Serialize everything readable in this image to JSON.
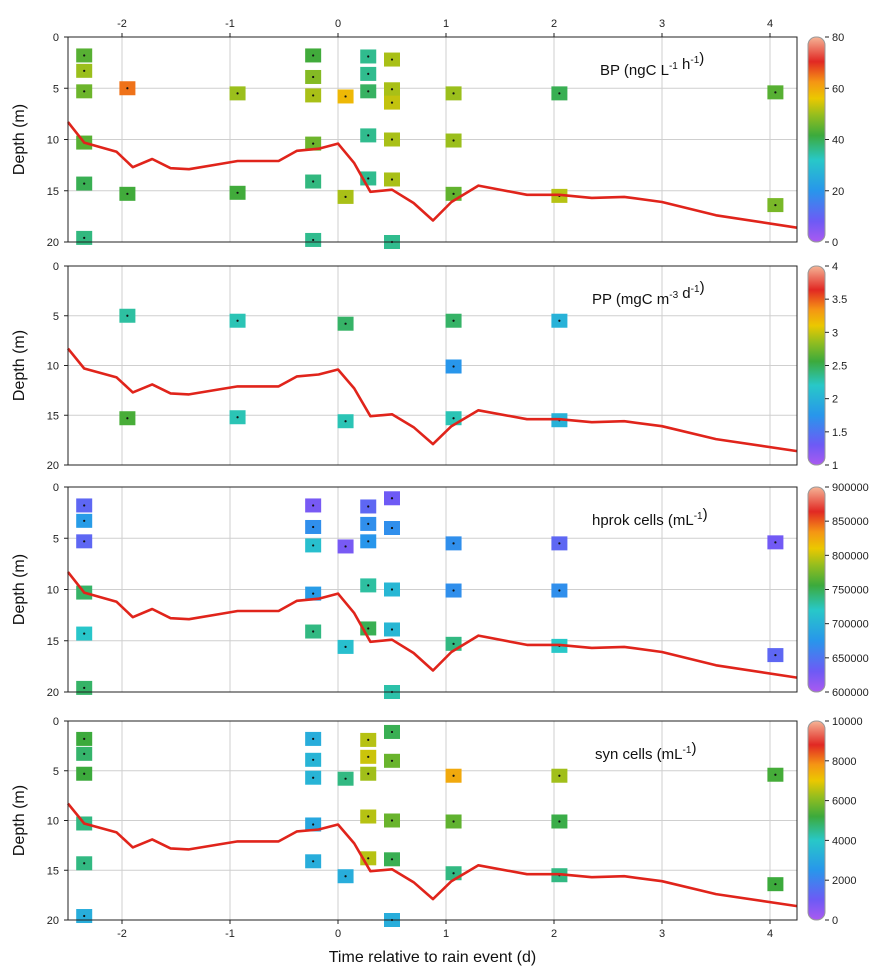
{
  "figure": {
    "xlabel": "Time relative to rain event (d)",
    "ylabel": "Depth (m)"
  },
  "chart_data": [
    {
      "type": "scatter",
      "title_main": "BP (ngC L",
      "title_sup1": "-1",
      "title_mid": " h",
      "title_sup2": "-1",
      "title_end": ")",
      "xlabel": "Time relative to rain event (d)",
      "ylabel": "Depth (m)",
      "xlim": [
        -2.5,
        4.25
      ],
      "ylim": [
        20,
        0
      ],
      "xticks": [
        "-2",
        "-1",
        "0",
        "1",
        "2",
        "3",
        "4"
      ],
      "yticks": [
        "0",
        "5",
        "10",
        "15",
        "20"
      ],
      "colorbar": {
        "min": 0,
        "max": 80,
        "ticks": [
          "0",
          "20",
          "40",
          "60",
          "80"
        ]
      },
      "points": [
        {
          "x": -2.35,
          "y": 1.8,
          "v": 44
        },
        {
          "x": -2.35,
          "y": 3.3,
          "v": 50
        },
        {
          "x": -2.35,
          "y": 5.3,
          "v": 46
        },
        {
          "x": -2.35,
          "y": 10.3,
          "v": 44
        },
        {
          "x": -2.35,
          "y": 14.3,
          "v": 40
        },
        {
          "x": -2.35,
          "y": 19.6,
          "v": 37
        },
        {
          "x": -1.95,
          "y": 5.0,
          "v": 65
        },
        {
          "x": -1.95,
          "y": 15.3,
          "v": 42
        },
        {
          "x": -0.93,
          "y": 5.5,
          "v": 50
        },
        {
          "x": -0.93,
          "y": 15.2,
          "v": 42
        },
        {
          "x": -0.23,
          "y": 1.8,
          "v": 42
        },
        {
          "x": -0.23,
          "y": 3.9,
          "v": 48
        },
        {
          "x": -0.23,
          "y": 5.7,
          "v": 51
        },
        {
          "x": -0.23,
          "y": 10.4,
          "v": 46
        },
        {
          "x": -0.23,
          "y": 14.1,
          "v": 37
        },
        {
          "x": -0.23,
          "y": 19.8,
          "v": 36
        },
        {
          "x": 0.07,
          "y": 5.8,
          "v": 58
        },
        {
          "x": 0.07,
          "y": 15.6,
          "v": 51
        },
        {
          "x": 0.28,
          "y": 1.9,
          "v": 36
        },
        {
          "x": 0.28,
          "y": 3.6,
          "v": 36
        },
        {
          "x": 0.28,
          "y": 5.3,
          "v": 39
        },
        {
          "x": 0.28,
          "y": 9.6,
          "v": 36
        },
        {
          "x": 0.28,
          "y": 13.8,
          "v": 36
        },
        {
          "x": 0.5,
          "y": 2.2,
          "v": 51
        },
        {
          "x": 0.5,
          "y": 5.1,
          "v": 51
        },
        {
          "x": 0.5,
          "y": 6.4,
          "v": 53
        },
        {
          "x": 0.5,
          "y": 10.0,
          "v": 51
        },
        {
          "x": 0.5,
          "y": 13.9,
          "v": 51
        },
        {
          "x": 0.5,
          "y": 20.0,
          "v": 36
        },
        {
          "x": 1.07,
          "y": 5.5,
          "v": 50
        },
        {
          "x": 1.07,
          "y": 10.1,
          "v": 50
        },
        {
          "x": 1.07,
          "y": 15.3,
          "v": 45
        },
        {
          "x": 2.05,
          "y": 5.5,
          "v": 40
        },
        {
          "x": 2.05,
          "y": 15.5,
          "v": 52
        },
        {
          "x": 4.05,
          "y": 5.4,
          "v": 44
        },
        {
          "x": 4.05,
          "y": 16.4,
          "v": 47
        }
      ]
    },
    {
      "type": "scatter",
      "title_main": "PP (mgC m",
      "title_sup1": "-3",
      "title_mid": " d",
      "title_sup2": "-1",
      "title_end": ")",
      "xlim": [
        -2.5,
        4.25
      ],
      "ylim": [
        20,
        0
      ],
      "yticks": [
        "0",
        "5",
        "10",
        "15",
        "20"
      ],
      "colorbar": {
        "min": 1,
        "max": 4,
        "ticks": [
          "1",
          "1.5",
          "2",
          "2.5",
          "3",
          "3.5",
          "4"
        ]
      },
      "points": [
        {
          "x": -1.95,
          "y": 5.0,
          "v": 2.3
        },
        {
          "x": -1.95,
          "y": 15.3,
          "v": 2.6
        },
        {
          "x": -0.93,
          "y": 5.5,
          "v": 2.25
        },
        {
          "x": -0.93,
          "y": 15.2,
          "v": 2.25
        },
        {
          "x": 0.07,
          "y": 5.8,
          "v": 2.45
        },
        {
          "x": 0.07,
          "y": 15.6,
          "v": 2.25
        },
        {
          "x": 1.07,
          "y": 5.5,
          "v": 2.45
        },
        {
          "x": 1.07,
          "y": 10.1,
          "v": 1.75
        },
        {
          "x": 1.07,
          "y": 15.3,
          "v": 2.25
        },
        {
          "x": 2.05,
          "y": 5.5,
          "v": 2.0
        },
        {
          "x": 2.05,
          "y": 15.5,
          "v": 2.0
        }
      ]
    },
    {
      "type": "scatter",
      "title_main": "hprok cells (mL",
      "title_sup1": "-1",
      "title_mid": "",
      "title_sup2": "",
      "title_end": ")",
      "xlim": [
        -2.5,
        4.25
      ],
      "ylim": [
        20,
        0
      ],
      "yticks": [
        "0",
        "5",
        "10",
        "15",
        "20"
      ],
      "colorbar": {
        "min": 600000,
        "max": 900000,
        "ticks": [
          "600000",
          "650000",
          "700000",
          "750000",
          "800000",
          "850000",
          "900000"
        ]
      },
      "points": [
        {
          "x": -2.35,
          "y": 1.8,
          "v": 640000
        },
        {
          "x": -2.35,
          "y": 3.3,
          "v": 680000
        },
        {
          "x": -2.35,
          "y": 5.3,
          "v": 640000
        },
        {
          "x": -2.35,
          "y": 10.3,
          "v": 745000
        },
        {
          "x": -2.35,
          "y": 14.3,
          "v": 718000
        },
        {
          "x": -2.35,
          "y": 19.6,
          "v": 745000
        },
        {
          "x": -0.23,
          "y": 1.8,
          "v": 625000
        },
        {
          "x": -0.23,
          "y": 3.9,
          "v": 670000
        },
        {
          "x": -0.23,
          "y": 5.7,
          "v": 712000
        },
        {
          "x": -0.23,
          "y": 10.4,
          "v": 680000
        },
        {
          "x": -0.23,
          "y": 14.1,
          "v": 738000
        },
        {
          "x": 0.07,
          "y": 5.8,
          "v": 625000
        },
        {
          "x": 0.07,
          "y": 15.6,
          "v": 712000
        },
        {
          "x": 0.28,
          "y": 1.9,
          "v": 640000
        },
        {
          "x": 0.28,
          "y": 3.6,
          "v": 670000
        },
        {
          "x": 0.28,
          "y": 5.3,
          "v": 675000
        },
        {
          "x": 0.28,
          "y": 9.6,
          "v": 730000
        },
        {
          "x": 0.28,
          "y": 13.8,
          "v": 750000
        },
        {
          "x": 0.5,
          "y": 1.1,
          "v": 630000
        },
        {
          "x": 0.5,
          "y": 4.0,
          "v": 670000
        },
        {
          "x": 0.5,
          "y": 10.0,
          "v": 705000
        },
        {
          "x": 0.5,
          "y": 13.9,
          "v": 705000
        },
        {
          "x": 0.5,
          "y": 20.0,
          "v": 728000
        },
        {
          "x": 1.07,
          "y": 5.5,
          "v": 670000
        },
        {
          "x": 1.07,
          "y": 10.1,
          "v": 670000
        },
        {
          "x": 1.07,
          "y": 15.3,
          "v": 738000
        },
        {
          "x": 2.05,
          "y": 5.5,
          "v": 640000
        },
        {
          "x": 2.05,
          "y": 10.1,
          "v": 670000
        },
        {
          "x": 2.05,
          "y": 15.5,
          "v": 720000
        },
        {
          "x": 4.05,
          "y": 5.4,
          "v": 628000
        },
        {
          "x": 4.05,
          "y": 16.4,
          "v": 640000
        }
      ]
    },
    {
      "type": "scatter",
      "title_main": "syn cells (mL",
      "title_sup1": "-1",
      "title_mid": "",
      "title_sup2": "",
      "title_end": ")",
      "xlim": [
        -2.5,
        4.25
      ],
      "ylim": [
        20,
        0
      ],
      "yticks": [
        "0",
        "5",
        "10",
        "15",
        "20"
      ],
      "colorbar": {
        "min": 0,
        "max": 10000,
        "ticks": [
          "0",
          "2000",
          "4000",
          "6000",
          "8000",
          "10000"
        ]
      },
      "points": [
        {
          "x": -2.35,
          "y": 1.8,
          "v": 5200
        },
        {
          "x": -2.35,
          "y": 3.3,
          "v": 4800
        },
        {
          "x": -2.35,
          "y": 5.3,
          "v": 5200
        },
        {
          "x": -2.35,
          "y": 10.3,
          "v": 4600
        },
        {
          "x": -2.35,
          "y": 14.3,
          "v": 4600
        },
        {
          "x": -2.35,
          "y": 19.6,
          "v": 3200
        },
        {
          "x": -0.23,
          "y": 1.8,
          "v": 3200
        },
        {
          "x": -0.23,
          "y": 3.9,
          "v": 3400
        },
        {
          "x": -0.23,
          "y": 5.7,
          "v": 3400
        },
        {
          "x": -0.23,
          "y": 10.4,
          "v": 3000
        },
        {
          "x": -0.23,
          "y": 14.1,
          "v": 3200
        },
        {
          "x": 0.07,
          "y": 5.8,
          "v": 4600
        },
        {
          "x": 0.07,
          "y": 15.6,
          "v": 3200
        },
        {
          "x": 0.28,
          "y": 1.9,
          "v": 6500
        },
        {
          "x": 0.28,
          "y": 3.6,
          "v": 6700
        },
        {
          "x": 0.28,
          "y": 5.3,
          "v": 6300
        },
        {
          "x": 0.28,
          "y": 9.6,
          "v": 6500
        },
        {
          "x": 0.28,
          "y": 13.8,
          "v": 6500
        },
        {
          "x": 0.5,
          "y": 1.1,
          "v": 5000
        },
        {
          "x": 0.5,
          "y": 4.0,
          "v": 5700
        },
        {
          "x": 0.5,
          "y": 10.0,
          "v": 5700
        },
        {
          "x": 0.5,
          "y": 13.9,
          "v": 5000
        },
        {
          "x": 0.5,
          "y": 20.0,
          "v": 3200
        },
        {
          "x": 1.07,
          "y": 5.5,
          "v": 7500
        },
        {
          "x": 1.07,
          "y": 10.1,
          "v": 5600
        },
        {
          "x": 1.07,
          "y": 15.3,
          "v": 4600
        },
        {
          "x": 2.05,
          "y": 5.5,
          "v": 6300
        },
        {
          "x": 2.05,
          "y": 10.1,
          "v": 5100
        },
        {
          "x": 2.05,
          "y": 15.5,
          "v": 4600
        },
        {
          "x": 4.05,
          "y": 5.4,
          "v": 5300
        },
        {
          "x": 4.05,
          "y": 16.4,
          "v": 5200
        }
      ]
    }
  ],
  "mixed_layer_line": {
    "color": "#e0241b",
    "x": [
      -2.5,
      -2.35,
      -2.05,
      -1.9,
      -1.72,
      -1.55,
      -1.38,
      -1.1,
      -0.93,
      -0.55,
      -0.38,
      -0.18,
      0,
      0.15,
      0.3,
      0.5,
      0.7,
      0.88,
      1.05,
      1.3,
      1.75,
      2.05,
      2.35,
      2.65,
      3.0,
      3.5,
      4.25
    ],
    "y": [
      8.3,
      10.3,
      11.2,
      12.7,
      11.9,
      12.8,
      12.9,
      12.4,
      12.1,
      12.1,
      11.1,
      10.9,
      10.4,
      12.3,
      15.1,
      14.9,
      16.2,
      17.9,
      16.1,
      14.5,
      15.4,
      15.4,
      15.7,
      15.6,
      16.1,
      17.4,
      18.6
    ]
  }
}
